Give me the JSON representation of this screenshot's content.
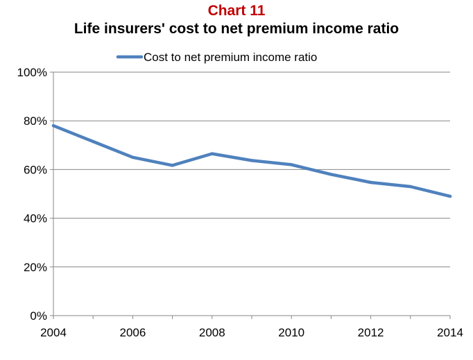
{
  "chart_data": {
    "type": "line",
    "label": "Chart 11",
    "title": "Life insurers' cost to net premium income ratio",
    "label_color": "#C00000",
    "xlabel": "",
    "ylabel": "",
    "x": [
      2004,
      2005,
      2006,
      2007,
      2008,
      2009,
      2010,
      2011,
      2012,
      2013,
      2014
    ],
    "x_ticks": [
      "2004",
      "2006",
      "2008",
      "2010",
      "2012",
      "2014"
    ],
    "y_ticks": [
      "0%",
      "20%",
      "40%",
      "60%",
      "80%",
      "100%"
    ],
    "xlim": [
      2004,
      2014
    ],
    "ylim": [
      0,
      100
    ],
    "grid": true,
    "legend_position": "top",
    "series": [
      {
        "name": "Cost to net premium income ratio",
        "color": "#4F81BD",
        "values": [
          78,
          71.5,
          65,
          61.7,
          66.5,
          63.7,
          62,
          58,
          54.7,
          53,
          49
        ]
      }
    ]
  }
}
